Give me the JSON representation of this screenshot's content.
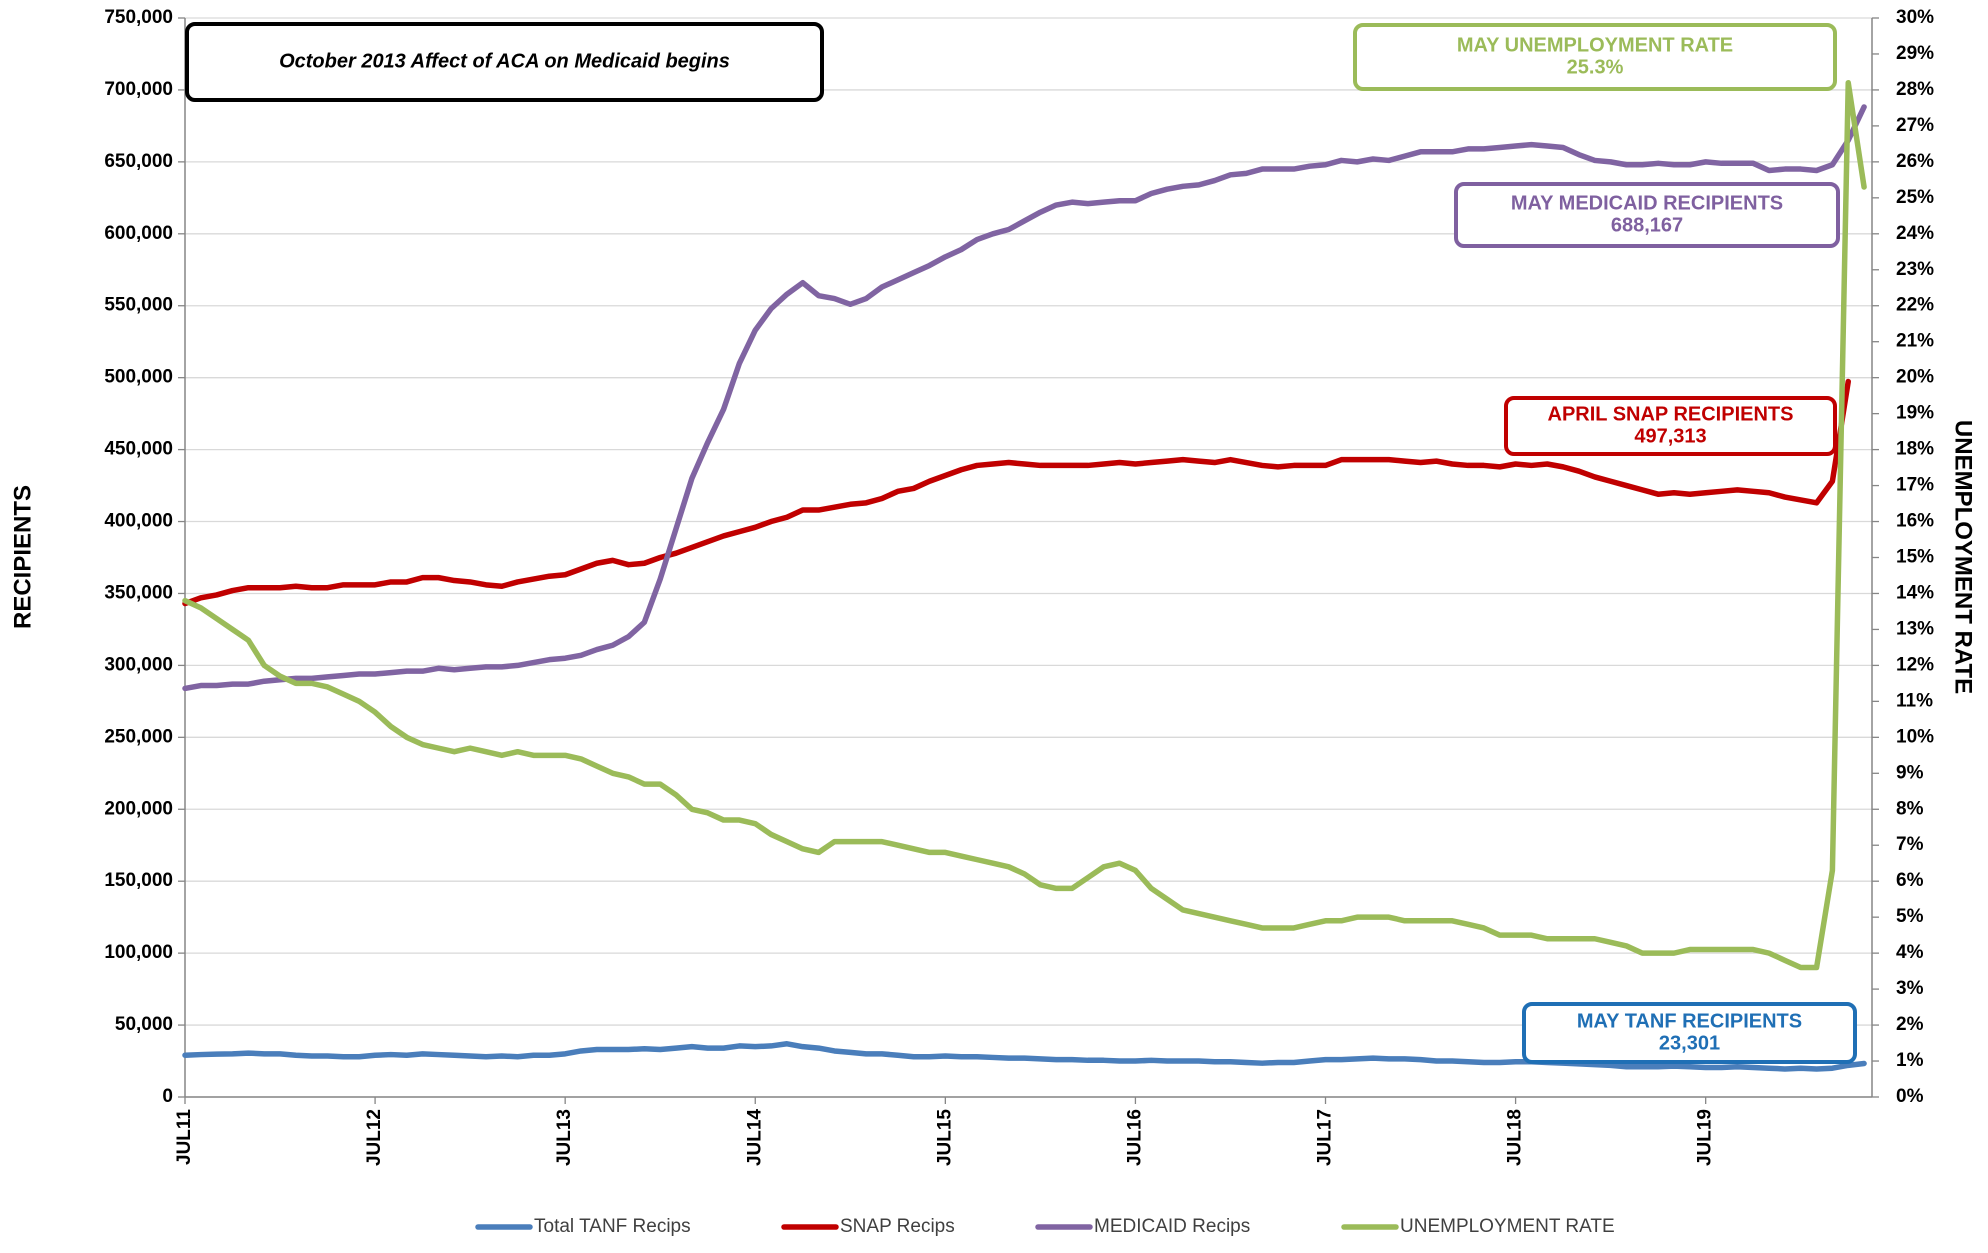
{
  "chart_data": {
    "type": "line",
    "y_label": "RECIPIENTS",
    "y2_label": "UNEMPLOYMENT RATE",
    "grid": true,
    "legend": "bottom",
    "categories": [
      "JUL11",
      null,
      null,
      null,
      null,
      null,
      null,
      null,
      null,
      null,
      null,
      null,
      "JUL12",
      null,
      null,
      null,
      null,
      null,
      null,
      null,
      null,
      null,
      null,
      null,
      "JUL13",
      null,
      null,
      null,
      null,
      null,
      null,
      null,
      null,
      null,
      null,
      null,
      "JUL14",
      null,
      null,
      null,
      null,
      null,
      null,
      null,
      null,
      null,
      null,
      null,
      "JUL15",
      null,
      null,
      null,
      null,
      null,
      null,
      null,
      null,
      null,
      null,
      null,
      "JUL16",
      null,
      null,
      null,
      null,
      null,
      null,
      null,
      null,
      null,
      null,
      null,
      "JUL17",
      null,
      null,
      null,
      null,
      null,
      null,
      null,
      null,
      null,
      null,
      null,
      "JUL18",
      null,
      null,
      null,
      null,
      null,
      null,
      null,
      null,
      null,
      null,
      null,
      "JUL19",
      null,
      null,
      null,
      null,
      null,
      null,
      null,
      null,
      null,
      null
    ],
    "ylim": [
      0,
      750000
    ],
    "yticks": [
      0,
      {
        "value": 50000,
        "label": "50,000"
      },
      {
        "value": 100000,
        "label": "100,000"
      },
      {
        "value": 150000,
        "label": "150,000"
      },
      {
        "value": 200000,
        "label": "200,000"
      },
      {
        "value": 250000,
        "label": "250,000"
      },
      {
        "value": 300000,
        "label": "300,000"
      },
      {
        "value": 350000,
        "label": "350,000"
      },
      {
        "value": 400000,
        "label": "400,000"
      },
      {
        "value": 450000,
        "label": "450,000"
      },
      {
        "value": 500000,
        "label": "500,000"
      },
      {
        "value": 550000,
        "label": "550,000"
      },
      {
        "value": 600000,
        "label": "600,000"
      },
      {
        "value": 650000,
        "label": "650,000"
      },
      {
        "value": 700000,
        "label": "700,000"
      },
      {
        "value": 750000,
        "label": "750,000"
      }
    ],
    "y2lim": [
      0,
      30
    ],
    "y2ticks": [
      {
        "value": 0,
        "label": "0%"
      },
      {
        "value": 1,
        "label": "1%"
      },
      {
        "value": 2,
        "label": "2%"
      },
      {
        "value": 3,
        "label": "3%"
      },
      {
        "value": 4,
        "label": "4%"
      },
      {
        "value": 5,
        "label": "5%"
      },
      {
        "value": 6,
        "label": "6%"
      },
      {
        "value": 7,
        "label": "7%"
      },
      {
        "value": 8,
        "label": "8%"
      },
      {
        "value": 9,
        "label": "9%"
      },
      {
        "value": 10,
        "label": "10%"
      },
      {
        "value": 11,
        "label": "11%"
      },
      {
        "value": 12,
        "label": "12%"
      },
      {
        "value": 13,
        "label": "13%"
      },
      {
        "value": 14,
        "label": "14%"
      },
      {
        "value": 15,
        "label": "15%"
      },
      {
        "value": 16,
        "label": "16%"
      },
      {
        "value": 17,
        "label": "17%"
      },
      {
        "value": 18,
        "label": "18%"
      },
      {
        "value": 19,
        "label": "19%"
      },
      {
        "value": 20,
        "label": "20%"
      },
      {
        "value": 21,
        "label": "21%"
      },
      {
        "value": 22,
        "label": "22%"
      },
      {
        "value": 23,
        "label": "23%"
      },
      {
        "value": 24,
        "label": "24%"
      },
      {
        "value": 25,
        "label": "25%"
      },
      {
        "value": 26,
        "label": "26%"
      },
      {
        "value": 27,
        "label": "27%"
      },
      {
        "value": 28,
        "label": "28%"
      },
      {
        "value": 29,
        "label": "29%"
      },
      {
        "value": 30,
        "label": "30%"
      }
    ],
    "series": [
      {
        "name": "Total TANF Recips",
        "color": "#4a7ebb",
        "values": [
          29000,
          29500,
          29800,
          30000,
          30500,
          30000,
          30000,
          29000,
          28500,
          28500,
          28000,
          28000,
          29000,
          29500,
          29000,
          30000,
          29500,
          29000,
          28500,
          28000,
          28500,
          28000,
          29000,
          29000,
          30000,
          32000,
          33000,
          33000,
          33000,
          33500,
          33000,
          34000,
          35000,
          34000,
          34000,
          35500,
          35000,
          35500,
          37000,
          35000,
          34000,
          32000,
          31000,
          30000,
          30000,
          29000,
          28000,
          28000,
          28500,
          28000,
          28000,
          27500,
          27000,
          27000,
          26500,
          26000,
          26000,
          25500,
          25500,
          25000,
          25000,
          25500,
          25000,
          25000,
          25000,
          24500,
          24500,
          24000,
          23500,
          24000,
          24000,
          25000,
          26000,
          26000,
          26500,
          27000,
          26500,
          26500,
          26000,
          25000,
          25000,
          24500,
          24000,
          24000,
          24500,
          24500,
          24000,
          23500,
          23000,
          22500,
          22000,
          21000,
          21000,
          21000,
          21500,
          21000,
          20500,
          20500,
          21000,
          20500,
          20000,
          19500,
          20000,
          19500,
          20000,
          22000,
          23301
        ]
      },
      {
        "name": "SNAP Recips",
        "color": "#c00000",
        "values": [
          343000,
          347000,
          349000,
          352000,
          354000,
          354000,
          354000,
          355000,
          354000,
          354000,
          356000,
          356000,
          356000,
          358000,
          358000,
          361000,
          361000,
          359000,
          358000,
          356000,
          355000,
          358000,
          360000,
          362000,
          363000,
          367000,
          371000,
          373000,
          370000,
          371000,
          375000,
          378000,
          382000,
          386000,
          390000,
          393000,
          396000,
          400000,
          403000,
          408000,
          408000,
          410000,
          412000,
          413000,
          416000,
          421000,
          423000,
          428000,
          432000,
          436000,
          439000,
          440000,
          441000,
          440000,
          439000,
          439000,
          439000,
          439000,
          440000,
          441000,
          440000,
          441000,
          442000,
          443000,
          442000,
          441000,
          443000,
          441000,
          439000,
          438000,
          439000,
          439000,
          439000,
          443000,
          443000,
          443000,
          443000,
          442000,
          441000,
          442000,
          440000,
          439000,
          439000,
          438000,
          440000,
          439000,
          440000,
          438000,
          435000,
          431000,
          428000,
          425000,
          422000,
          419000,
          420000,
          419000,
          420000,
          421000,
          422000,
          421000,
          420000,
          417000,
          415000,
          413000,
          428000,
          497313,
          null
        ]
      },
      {
        "name": "MEDICAID Recips",
        "color": "#8064a2",
        "values": [
          284000,
          286000,
          286000,
          287000,
          287000,
          289000,
          290000,
          291000,
          291000,
          292000,
          293000,
          294000,
          294000,
          295000,
          296000,
          296000,
          298000,
          297000,
          298000,
          299000,
          299000,
          300000,
          302000,
          304000,
          305000,
          307000,
          311000,
          314000,
          320000,
          330000,
          360000,
          395000,
          430000,
          455000,
          478000,
          510000,
          533000,
          548000,
          558000,
          566000,
          557000,
          555000,
          551000,
          555000,
          563000,
          568000,
          573000,
          578000,
          584000,
          589000,
          596000,
          600000,
          603000,
          609000,
          615000,
          620000,
          622000,
          621000,
          622000,
          623000,
          623000,
          628000,
          631000,
          633000,
          634000,
          637000,
          641000,
          642000,
          645000,
          645000,
          645000,
          647000,
          648000,
          651000,
          650000,
          652000,
          651000,
          654000,
          657000,
          657000,
          657000,
          659000,
          659000,
          660000,
          661000,
          662000,
          661000,
          660000,
          655000,
          651000,
          650000,
          648000,
          648000,
          649000,
          648000,
          648000,
          650000,
          649000,
          649000,
          649000,
          644000,
          645000,
          645000,
          644000,
          648000,
          665000,
          688167
        ]
      },
      {
        "name": "UNEMPLOYMENT RATE",
        "color": "#9bbb59",
        "axis": "y2",
        "values": [
          13.8,
          13.6,
          13.3,
          13.0,
          12.7,
          12.0,
          11.7,
          11.5,
          11.5,
          11.4,
          11.2,
          11.0,
          10.7,
          10.3,
          10.0,
          9.8,
          9.7,
          9.6,
          9.7,
          9.6,
          9.5,
          9.6,
          9.5,
          9.5,
          9.5,
          9.4,
          9.2,
          9.0,
          8.9,
          8.7,
          8.7,
          8.4,
          8.0,
          7.9,
          7.7,
          7.7,
          7.6,
          7.3,
          7.1,
          6.9,
          6.8,
          7.1,
          7.1,
          7.1,
          7.1,
          7.0,
          6.9,
          6.8,
          6.8,
          6.7,
          6.6,
          6.5,
          6.4,
          6.2,
          5.9,
          5.8,
          5.8,
          6.1,
          6.4,
          6.5,
          6.3,
          5.8,
          5.5,
          5.2,
          5.1,
          5.0,
          4.9,
          4.8,
          4.7,
          4.7,
          4.7,
          4.8,
          4.9,
          4.9,
          5.0,
          5.0,
          5.0,
          4.9,
          4.9,
          4.9,
          4.9,
          4.8,
          4.7,
          4.5,
          4.5,
          4.5,
          4.4,
          4.4,
          4.4,
          4.4,
          4.3,
          4.2,
          4.0,
          4.0,
          4.0,
          4.1,
          4.1,
          4.1,
          4.1,
          4.1,
          4.0,
          3.8,
          3.6,
          3.6,
          6.3,
          28.2,
          25.3
        ]
      }
    ],
    "annotations": [
      {
        "lines": [
          "October 2013 Affect of ACA on Medicaid begins"
        ],
        "color": "#000000"
      },
      {
        "lines": [
          "MAY UNEMPLOYMENT RATE",
          "25.3%"
        ],
        "color": "#9bbb59"
      },
      {
        "lines": [
          "MAY MEDICAID RECIPIENTS",
          "688,167"
        ],
        "color": "#7f60a0"
      },
      {
        "lines": [
          "APRIL SNAP RECIPIENTS",
          "497,313"
        ],
        "color": "#c00000"
      },
      {
        "lines": [
          "MAY TANF RECIPIENTS",
          "23,301"
        ],
        "color": "#1f6fb5"
      }
    ]
  }
}
